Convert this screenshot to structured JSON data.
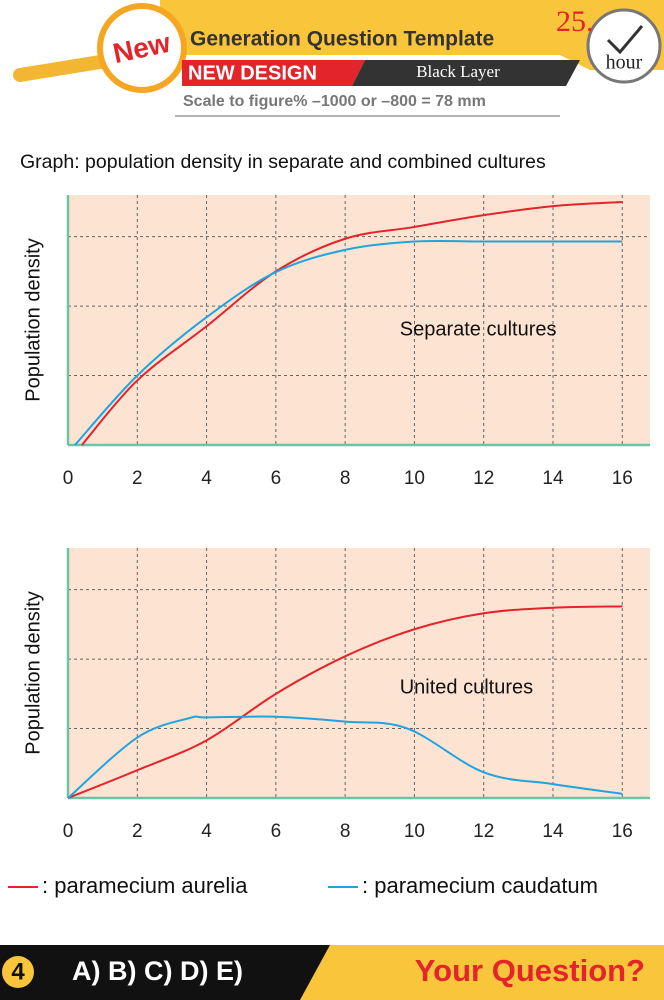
{
  "header": {
    "badge": "New",
    "title": "Generation Question Template",
    "tag": "NEW DESIGN",
    "layer": "Black Layer",
    "scale": "Scale to figure% –1000 or –800 = 78 mm",
    "clock_number": "25.",
    "clock_unit": "hour"
  },
  "question_title": "Graph: population density in separate and combined cultures",
  "chart_data": [
    {
      "type": "line",
      "ylabel": "Population density",
      "annotation": "Separate cultures",
      "xlim": [
        0,
        16.8
      ],
      "xticks": [
        0,
        2,
        4,
        6,
        8,
        10,
        12,
        14,
        16
      ],
      "ylim": [
        0,
        3.6
      ],
      "ygrid": [
        1,
        2,
        3
      ],
      "series": [
        {
          "color": "#e3242b",
          "x": [
            0.4,
            2,
            4,
            6,
            8,
            10,
            12,
            14,
            16
          ],
          "values": [
            0,
            0.93,
            1.71,
            2.5,
            2.97,
            3.14,
            3.31,
            3.44,
            3.5
          ]
        },
        {
          "color": "#1ea5e0",
          "x": [
            0.2,
            2,
            4,
            6,
            8,
            10,
            12,
            14,
            16
          ],
          "values": [
            0,
            1.0,
            1.84,
            2.49,
            2.81,
            2.93,
            2.93,
            2.93,
            2.93
          ]
        }
      ]
    },
    {
      "type": "line",
      "ylabel": "Population density",
      "annotation": "United cultures",
      "xlim": [
        0,
        16.8
      ],
      "xticks": [
        0,
        2,
        4,
        6,
        8,
        10,
        12,
        14,
        16
      ],
      "ylim": [
        0,
        3.6
      ],
      "ygrid": [
        1,
        2,
        3
      ],
      "series": [
        {
          "color": "#e3242b",
          "x": [
            0,
            2,
            4,
            6,
            8,
            10,
            12,
            14,
            16
          ],
          "values": [
            0,
            0.4,
            0.83,
            1.5,
            2.04,
            2.43,
            2.66,
            2.74,
            2.76
          ]
        },
        {
          "color": "#1ea5e0",
          "x": [
            0,
            2,
            3.5,
            4,
            6,
            8,
            9.8,
            12,
            14,
            16
          ],
          "values": [
            0,
            0.87,
            1.15,
            1.16,
            1.17,
            1.1,
            1.0,
            0.37,
            0.2,
            0.06
          ]
        }
      ]
    }
  ],
  "legend": [
    {
      "name": ": paramecium aurelia",
      "color": "#e3242b"
    },
    {
      "name": ": paramecium caudatum",
      "color": "#1ea5e0"
    }
  ],
  "footer": {
    "number": "4",
    "answers": "A) B) C) D) E)",
    "prompt": "Your Question?"
  }
}
